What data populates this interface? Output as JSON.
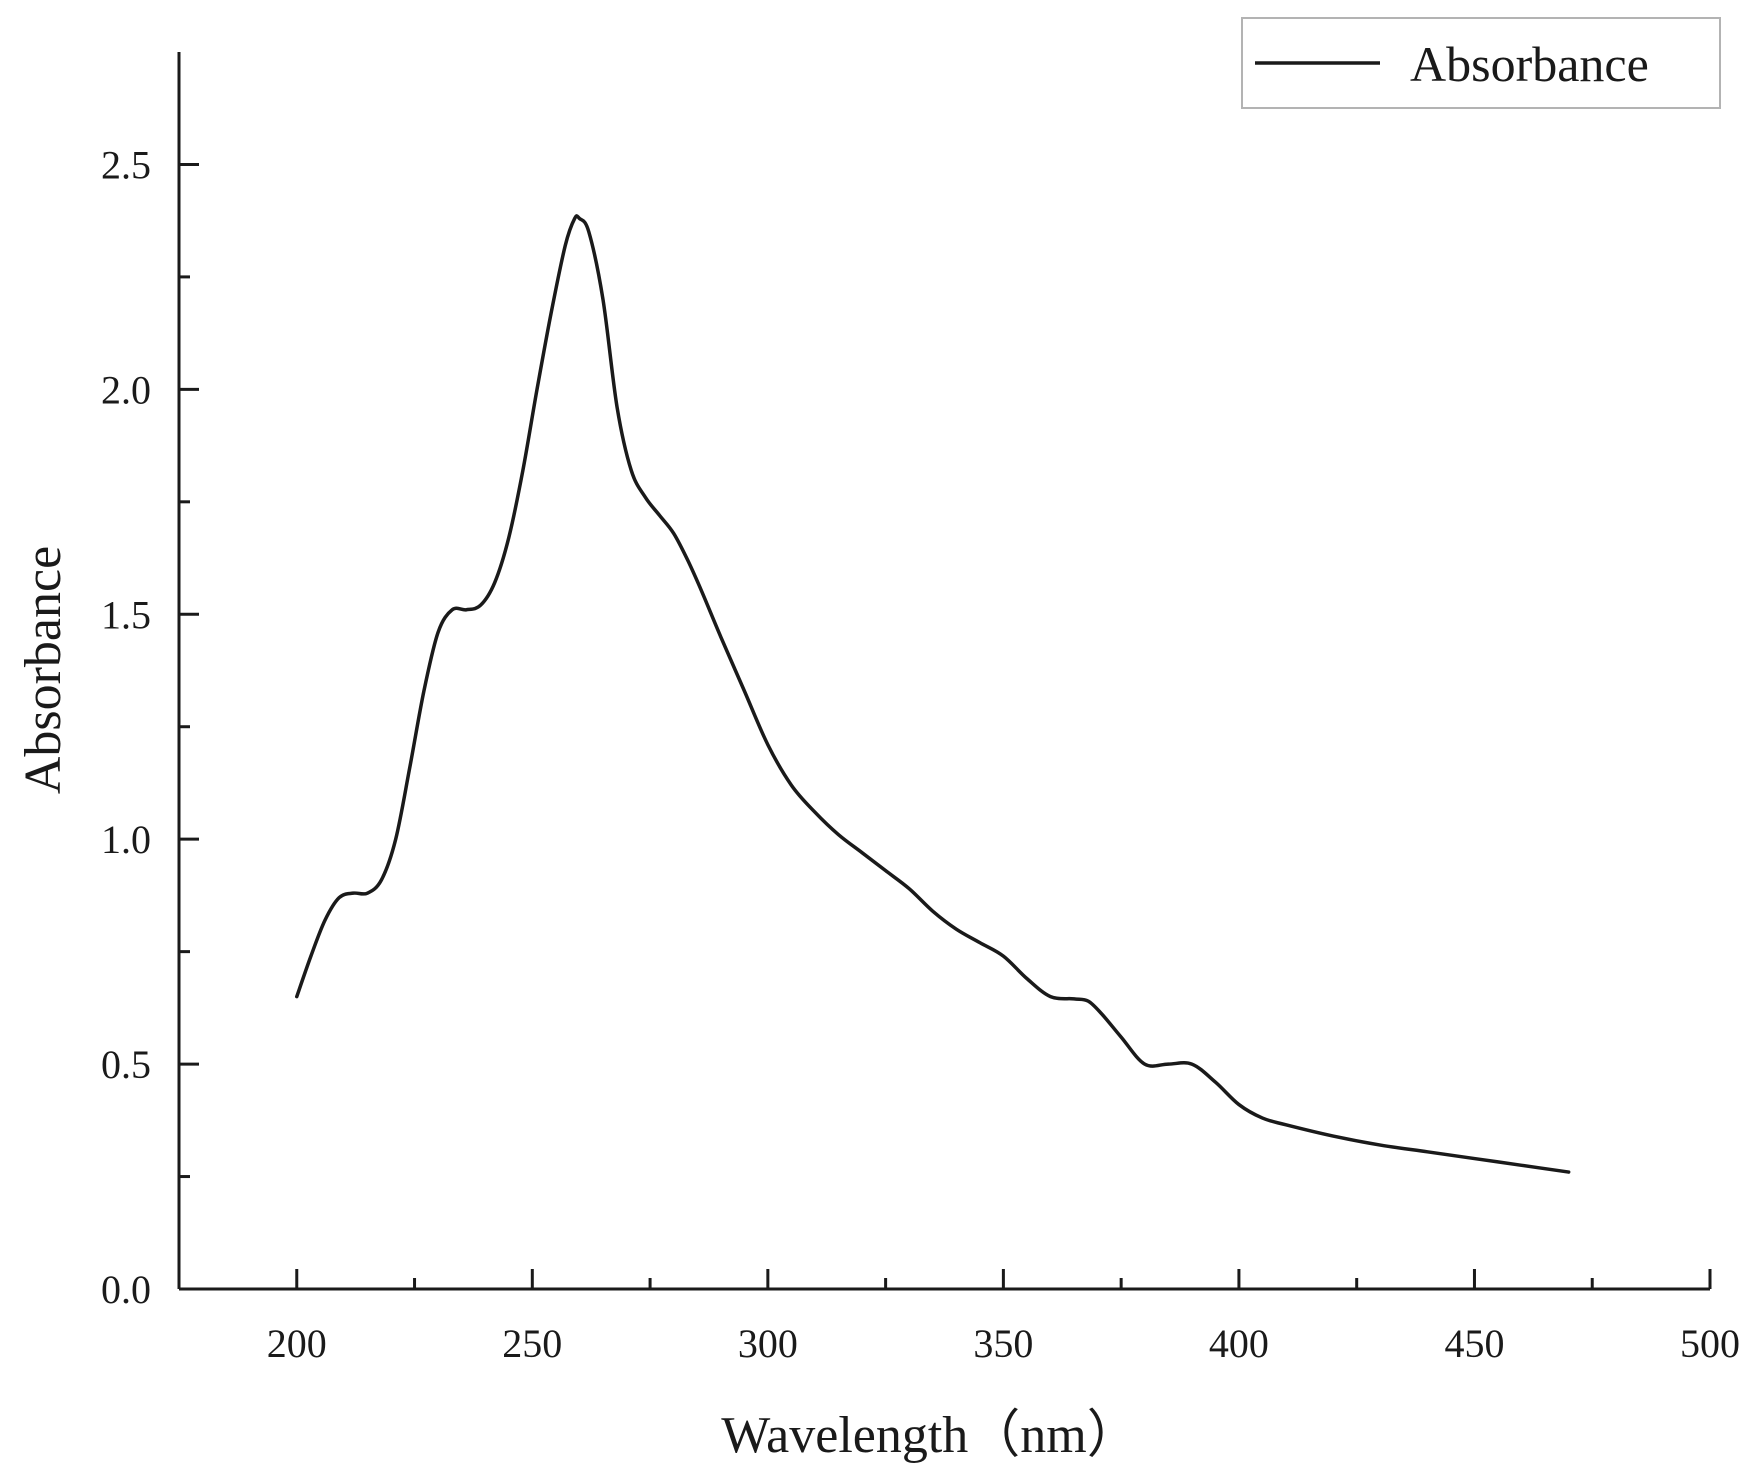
{
  "chart_data": {
    "type": "line",
    "title": "",
    "xlabel": "Wavelength（nm）",
    "ylabel": "Absorbance",
    "xlim": [
      175,
      500
    ],
    "ylim": [
      0,
      2.75
    ],
    "x_major_ticks": [
      200,
      250,
      300,
      350,
      400,
      450,
      500
    ],
    "x_minor_ticks": [
      225,
      275,
      325,
      375,
      425,
      475
    ],
    "y_major_ticks": [
      0.0,
      0.5,
      1.0,
      1.5,
      2.0,
      2.5
    ],
    "y_minor_ticks": [
      0.25,
      0.75,
      1.25,
      1.75,
      2.25
    ],
    "x_tick_labels": [
      "200",
      "250",
      "300",
      "350",
      "400",
      "450",
      "500"
    ],
    "y_tick_labels": [
      "0.0",
      "0.5",
      "1.0",
      "1.5",
      "2.0",
      "2.5"
    ],
    "grid": false,
    "legend": {
      "position": "top-right"
    },
    "line_color": "#1a1a1a",
    "series": [
      {
        "name": "Absorbance",
        "x": [
          200,
          203,
          206,
          209,
          212,
          215,
          218,
          221,
          224,
          227,
          230,
          233,
          236,
          239,
          242,
          245,
          248,
          251,
          254,
          257,
          259,
          260,
          262,
          265,
          268,
          271,
          274,
          277,
          280,
          283,
          286,
          290,
          295,
          300,
          305,
          310,
          315,
          320,
          325,
          330,
          335,
          340,
          345,
          350,
          355,
          360,
          365,
          368,
          371,
          375,
          380,
          385,
          390,
          395,
          400,
          405,
          410,
          420,
          430,
          440,
          450,
          460,
          470
        ],
        "y": [
          0.65,
          0.74,
          0.82,
          0.87,
          0.88,
          0.88,
          0.91,
          1.0,
          1.16,
          1.33,
          1.46,
          1.51,
          1.51,
          1.52,
          1.57,
          1.67,
          1.82,
          2.0,
          2.17,
          2.32,
          2.38,
          2.38,
          2.35,
          2.2,
          1.96,
          1.82,
          1.76,
          1.72,
          1.68,
          1.62,
          1.55,
          1.45,
          1.33,
          1.21,
          1.12,
          1.06,
          1.01,
          0.97,
          0.93,
          0.89,
          0.84,
          0.8,
          0.77,
          0.74,
          0.69,
          0.65,
          0.645,
          0.64,
          0.61,
          0.56,
          0.5,
          0.5,
          0.5,
          0.46,
          0.41,
          0.38,
          0.365,
          0.34,
          0.32,
          0.305,
          0.29,
          0.275,
          0.26
        ]
      }
    ]
  }
}
